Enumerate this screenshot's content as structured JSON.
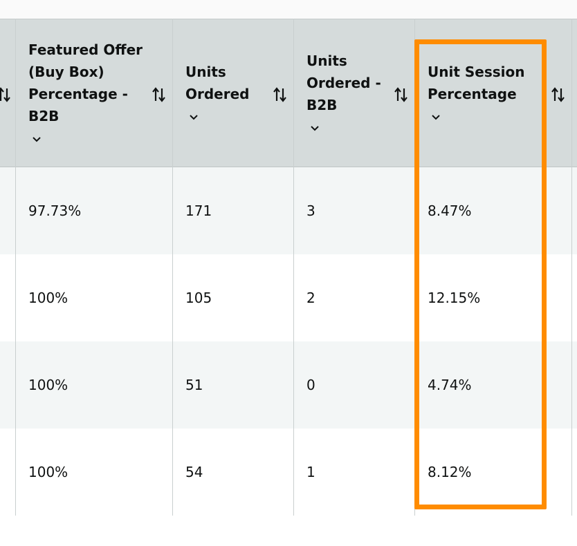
{
  "table": {
    "columns": [
      {
        "label": "Featured Offer\n(Buy Box)\nPercentage -\nB2B"
      },
      {
        "label": "Units\nOrdered"
      },
      {
        "label": "Units\nOrdered -\nB2B"
      },
      {
        "label": "Unit Session\nPercentage"
      }
    ],
    "rows": [
      {
        "featured_offer_b2b": "97.73%",
        "units_ordered": "171",
        "units_ordered_b2b": "3",
        "unit_session_percentage": "8.47%"
      },
      {
        "featured_offer_b2b": "100%",
        "units_ordered": "105",
        "units_ordered_b2b": "2",
        "unit_session_percentage": "12.15%"
      },
      {
        "featured_offer_b2b": "100%",
        "units_ordered": "51",
        "units_ordered_b2b": "0",
        "unit_session_percentage": "4.74%"
      },
      {
        "featured_offer_b2b": "100%",
        "units_ordered": "54",
        "units_ordered_b2b": "1",
        "unit_session_percentage": "8.12%"
      }
    ]
  },
  "icons": {
    "sort": "sort-arrows-icon",
    "chevron": "chevron-down-icon"
  },
  "colors": {
    "header_bg": "#d5dbdb",
    "row_shaded": "#f3f6f6",
    "highlight": "#ff8c00"
  }
}
